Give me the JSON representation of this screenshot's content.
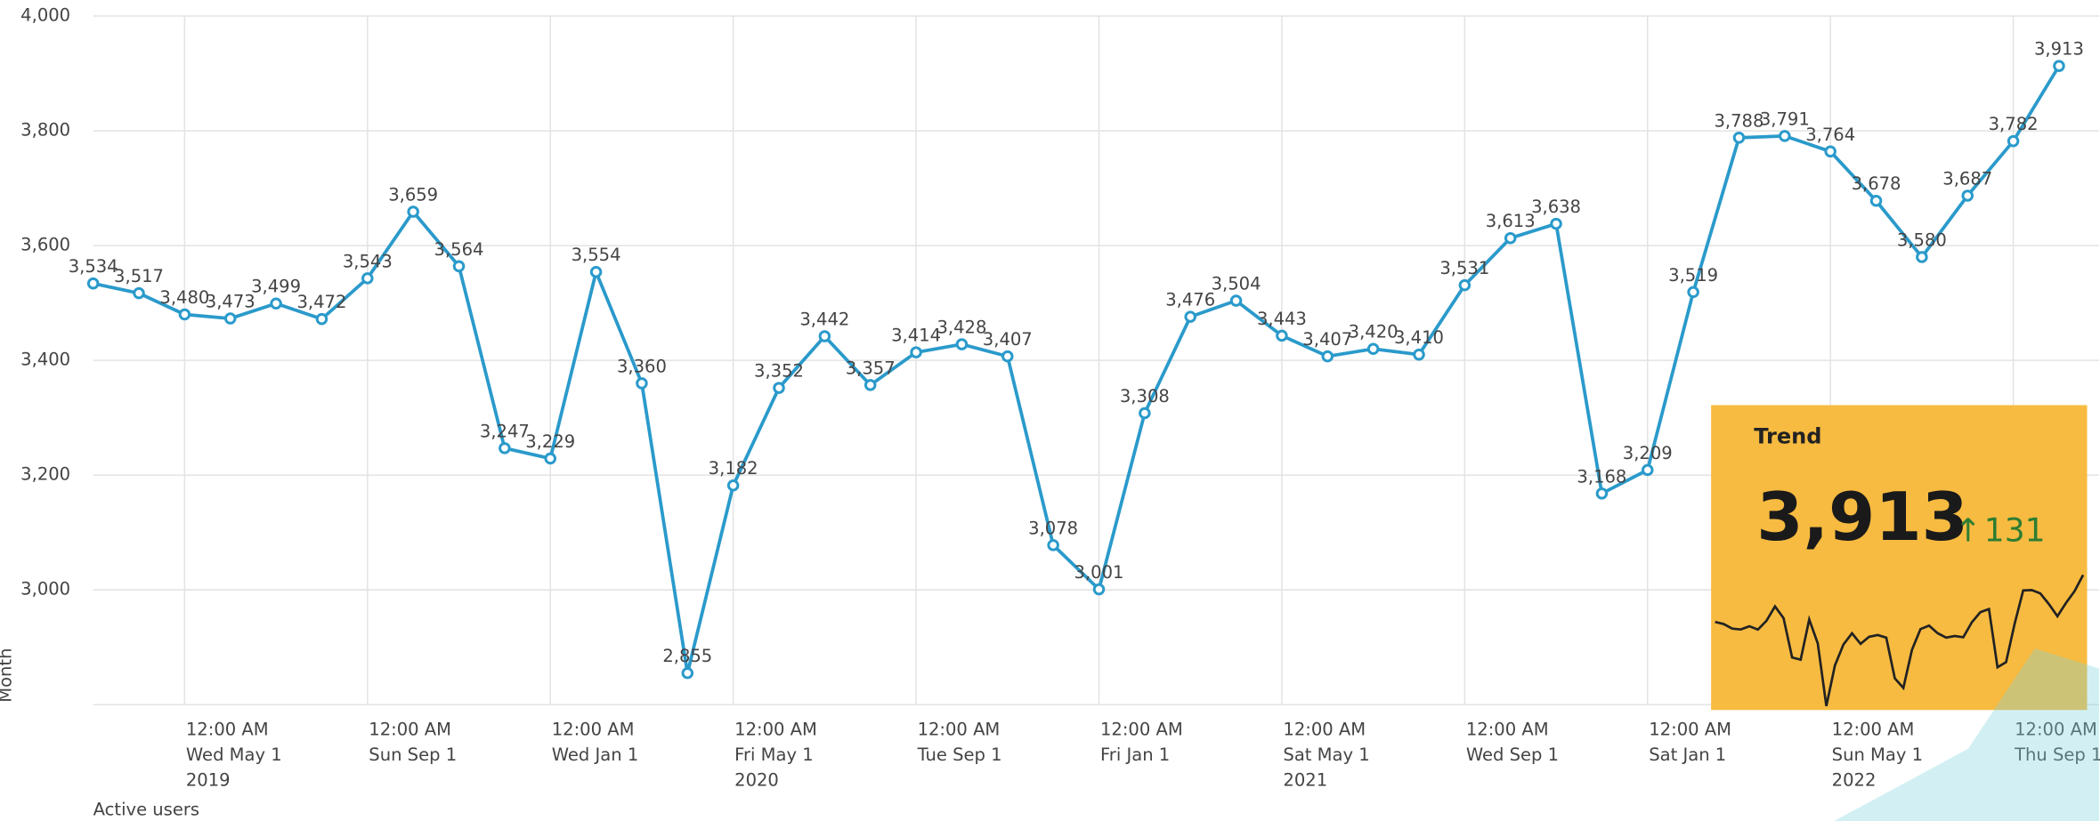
{
  "chart_data": {
    "type": "line",
    "y_label": "Month",
    "x": [
      "2019-03-01",
      "2019-04-01",
      "2019-05-01",
      "2019-06-01",
      "2019-07-01",
      "2019-08-01",
      "2019-09-01",
      "2019-10-01",
      "2019-11-01",
      "2019-12-01",
      "2020-01-01",
      "2020-02-01",
      "2020-03-01",
      "2020-04-01",
      "2020-05-01",
      "2020-06-01",
      "2020-07-01",
      "2020-08-01",
      "2020-09-01",
      "2020-10-01",
      "2020-11-01",
      "2020-12-01",
      "2021-01-01",
      "2021-02-01",
      "2021-03-01",
      "2021-04-01",
      "2021-05-01",
      "2021-06-01",
      "2021-07-01",
      "2021-08-01",
      "2021-09-01",
      "2021-10-01",
      "2021-11-01",
      "2021-12-01",
      "2022-01-01",
      "2022-02-01",
      "2022-03-01",
      "2022-04-01",
      "2022-05-01",
      "2022-06-01",
      "2022-07-01",
      "2022-08-01",
      "2022-09-01",
      "2022-10-01"
    ],
    "series": [
      {
        "name": "Active users",
        "color": "#2a9acb",
        "values": [
          3534,
          3517,
          3480,
          3473,
          3499,
          3472,
          3543,
          3659,
          3564,
          3247,
          3229,
          3554,
          3360,
          2855,
          3182,
          3352,
          3442,
          3357,
          3414,
          3428,
          3407,
          3078,
          3001,
          3308,
          3476,
          3504,
          3443,
          3407,
          3420,
          3410,
          3531,
          3613,
          3638,
          3168,
          3209,
          3519,
          3788,
          3791,
          3764,
          3678,
          3580,
          3687,
          3782,
          3913
        ],
        "value_labels": [
          "3,534",
          "3,517",
          "3,480",
          "3,473",
          "3,499",
          "3,472",
          "3,543",
          "3,659",
          "3,564",
          "3,247",
          "3,229",
          "3,554",
          "3,360",
          "2,855",
          "3,182",
          "3,352",
          "3,442",
          "3,357",
          "3,414",
          "3,428",
          "3,407",
          "3,078",
          "3,001",
          "3,308",
          "3,476",
          "3,504",
          "3,443",
          "3,407",
          "3,420",
          "3,410",
          "3,531",
          "3,613",
          "3,638",
          "3,168",
          "3,209",
          "3,519",
          "3,788",
          "3,791",
          "3,764",
          "3,678",
          "3,580",
          "3,687",
          "3,782",
          "3,913"
        ]
      }
    ],
    "ylim": [
      2800,
      4000
    ],
    "yticks": [
      {
        "value": 3000,
        "label": "3,000"
      },
      {
        "value": 3200,
        "label": "3,200"
      },
      {
        "value": 3400,
        "label": "3,400"
      },
      {
        "value": 3600,
        "label": "3,600"
      },
      {
        "value": 3800,
        "label": "3,800"
      },
      {
        "value": 4000,
        "label": "4,000"
      }
    ],
    "xticks": [
      {
        "value": "2019-05-01",
        "label": [
          "12:00 AM",
          "Wed May 1",
          "2019"
        ]
      },
      {
        "value": "2019-09-01",
        "label": [
          "12:00 AM",
          "Sun Sep 1"
        ]
      },
      {
        "value": "2020-01-01",
        "label": [
          "12:00 AM",
          "Wed Jan 1"
        ]
      },
      {
        "value": "2020-05-01",
        "label": [
          "12:00 AM",
          "Fri May 1",
          "2020"
        ]
      },
      {
        "value": "2020-09-01",
        "label": [
          "12:00 AM",
          "Tue Sep 1"
        ]
      },
      {
        "value": "2021-01-01",
        "label": [
          "12:00 AM",
          "Fri Jan 1"
        ]
      },
      {
        "value": "2021-05-01",
        "label": [
          "12:00 AM",
          "Sat May 1",
          "2021"
        ]
      },
      {
        "value": "2021-09-01",
        "label": [
          "12:00 AM",
          "Wed Sep 1"
        ]
      },
      {
        "value": "2022-01-01",
        "label": [
          "12:00 AM",
          "Sat Jan 1"
        ]
      },
      {
        "value": "2022-05-01",
        "label": [
          "12:00 AM",
          "Sun May 1",
          "2022"
        ]
      },
      {
        "value": "2022-09-01",
        "label": [
          "12:00 AM",
          "Thu Sep 1"
        ]
      }
    ],
    "grid": true
  },
  "trend": {
    "title": "Trend",
    "value_label": "3,913",
    "delta": "131"
  }
}
